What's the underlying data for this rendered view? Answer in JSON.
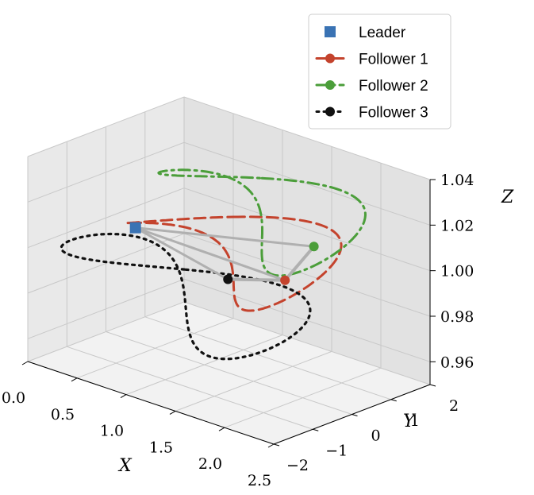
{
  "chart_data": {
    "type": "line3d",
    "title": "",
    "xlabel": "X",
    "ylabel": "Y",
    "zlabel": "Z",
    "xlim": [
      0.0,
      2.5
    ],
    "ylim": [
      -2,
      2
    ],
    "zlim": [
      0.95,
      1.04
    ],
    "x_ticks": [
      "0.0",
      "0.5",
      "1.0",
      "1.5",
      "2.0",
      "2.5"
    ],
    "y_ticks": [
      "−2",
      "−1",
      "0",
      "1",
      "2"
    ],
    "z_ticks": [
      "0.96",
      "0.98",
      "1.00",
      "1.02",
      "1.04"
    ],
    "grid": true,
    "legend_position": "top-right",
    "series": [
      {
        "name": "Leader",
        "color": "#3a73b4",
        "line": "none",
        "marker": "square",
        "current": {
          "x": 0.3,
          "y": 0.0,
          "z": 1.0
        }
      },
      {
        "name": "Follower 1",
        "color": "#c4432d",
        "line": "dashed",
        "marker": "circle",
        "current": {
          "x": 1.53,
          "y": 0.73,
          "z": 0.99
        }
      },
      {
        "name": "Follower 2",
        "color": "#4b9e3a",
        "line": "dashdot",
        "marker": "circle",
        "current": {
          "x": 1.53,
          "y": 1.47,
          "z": 1.0
        }
      },
      {
        "name": "Follower 3",
        "color": "#111111",
        "line": "dotted",
        "marker": "circle",
        "current": {
          "x": 1.53,
          "y": -0.73,
          "z": 1.0
        }
      }
    ]
  }
}
